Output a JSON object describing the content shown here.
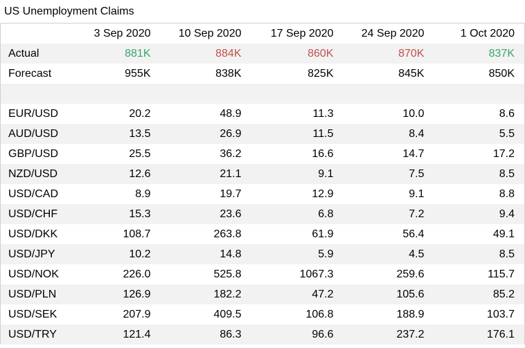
{
  "chart_data": {
    "type": "table",
    "title": "US Unemployment Claims",
    "columns": [
      "3 Sep 2020",
      "10 Sep 2020",
      "17 Sep 2020",
      "24 Sep 2020",
      "1 Oct 2020"
    ],
    "actual": {
      "label": "Actual",
      "values": [
        "881K",
        "884K",
        "860K",
        "870K",
        "837K"
      ],
      "colors": [
        "#3aa56b",
        "#c0504d",
        "#c0504d",
        "#c0504d",
        "#3aa56b"
      ]
    },
    "forecast": {
      "label": "Forecast",
      "values": [
        "955K",
        "838K",
        "825K",
        "845K",
        "850K"
      ]
    },
    "rows": [
      {
        "label": "EUR/USD",
        "values": [
          "20.2",
          "48.9",
          "11.3",
          "10.0",
          "8.6"
        ]
      },
      {
        "label": "AUD/USD",
        "values": [
          "13.5",
          "26.9",
          "11.5",
          "8.4",
          "5.5"
        ]
      },
      {
        "label": "GBP/USD",
        "values": [
          "25.5",
          "36.2",
          "16.6",
          "14.7",
          "17.2"
        ]
      },
      {
        "label": "NZD/USD",
        "values": [
          "12.6",
          "21.1",
          "9.1",
          "7.5",
          "8.5"
        ]
      },
      {
        "label": "USD/CAD",
        "values": [
          "8.9",
          "19.7",
          "12.9",
          "9.1",
          "8.8"
        ]
      },
      {
        "label": "USD/CHF",
        "values": [
          "15.3",
          "23.6",
          "6.8",
          "7.2",
          "9.4"
        ]
      },
      {
        "label": "USD/DKK",
        "values": [
          "108.7",
          "263.8",
          "61.9",
          "56.4",
          "49.1"
        ]
      },
      {
        "label": "USD/JPY",
        "values": [
          "10.2",
          "14.8",
          "5.9",
          "4.5",
          "8.5"
        ]
      },
      {
        "label": "USD/NOK",
        "values": [
          "226.0",
          "525.8",
          "1067.3",
          "259.6",
          "115.7"
        ]
      },
      {
        "label": "USD/PLN",
        "values": [
          "126.9",
          "182.2",
          "47.2",
          "105.6",
          "85.2"
        ]
      },
      {
        "label": "USD/SEK",
        "values": [
          "207.9",
          "409.5",
          "106.8",
          "188.9",
          "103.7"
        ]
      },
      {
        "label": "USD/TRY",
        "values": [
          "121.4",
          "86.3",
          "96.6",
          "237.2",
          "176.1"
        ]
      }
    ]
  }
}
